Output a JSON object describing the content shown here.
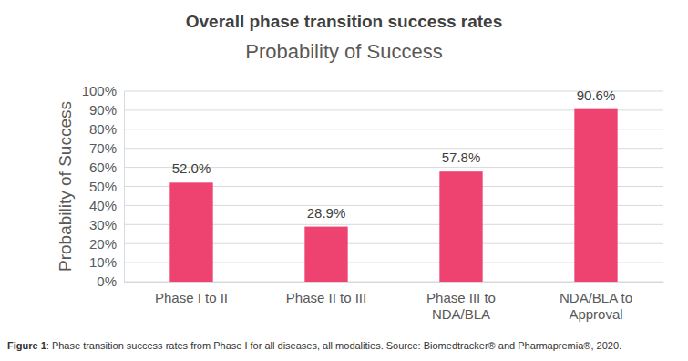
{
  "chart_data": {
    "type": "bar",
    "title": "Overall phase transition success rates",
    "subtitle": "Probability of Success",
    "y_label": "Probability of Success",
    "caption": "Figure 1: Phase transition success rates from Phase I for all diseases, all modalities. Source: Biomedtracker® and Pharmapremia®, 2020.",
    "categories": [
      "Phase I to II",
      "Phase II to III",
      "Phase III to NDA/BLA",
      "NDA/BLA to Approval"
    ],
    "values": [
      52.0,
      28.9,
      57.8,
      90.6
    ],
    "value_labels": [
      "52.0%",
      "28.9%",
      "57.8%",
      "90.6%"
    ],
    "color": "#ee4270",
    "ylim": [
      0,
      100
    ],
    "yticks": [
      {
        "value": 0,
        "label": "0%"
      },
      {
        "value": 10,
        "label": "10%"
      },
      {
        "value": 20,
        "label": "20%"
      },
      {
        "value": 30,
        "label": "30%"
      },
      {
        "value": 40,
        "label": "40%"
      },
      {
        "value": 50,
        "label": "50%"
      },
      {
        "value": 60,
        "label": "60%"
      },
      {
        "value": 70,
        "label": "70%"
      },
      {
        "value": 80,
        "label": "80%"
      },
      {
        "value": 90,
        "label": "90%"
      },
      {
        "value": 100,
        "label": "100%"
      }
    ],
    "grid": true,
    "data_labels": true
  }
}
